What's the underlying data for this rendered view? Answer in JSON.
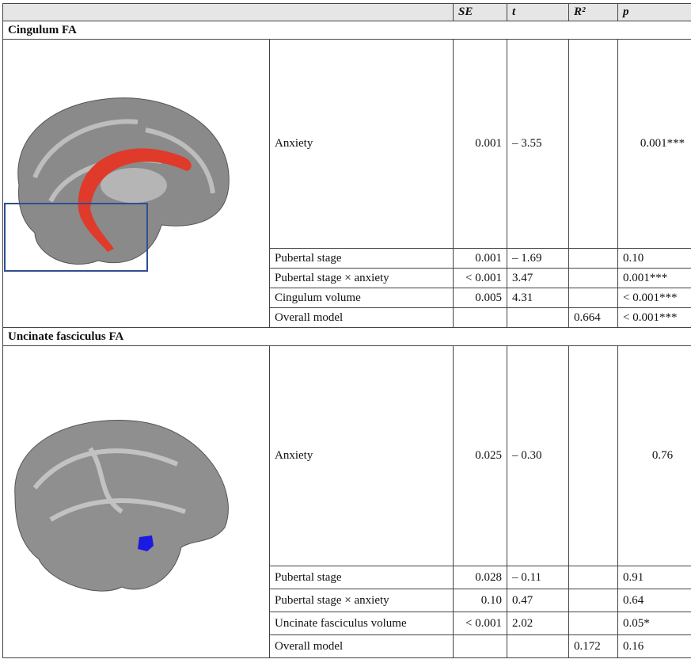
{
  "table": {
    "header": [
      "SE",
      "t",
      "R²",
      "p"
    ],
    "sections": [
      {
        "title": "Cingulum FA",
        "rows": [
          {
            "label": "Anxiety",
            "se": "0.001",
            "t": "– 3.55",
            "r2": null,
            "p": "0.001***"
          },
          {
            "label": "Pubertal stage",
            "se": "0.001",
            "t": "– 1.69",
            "r2": null,
            "p": "0.10"
          },
          {
            "label": "Pubertal stage × anxiety",
            "se": "< 0.001",
            "t": "3.47",
            "r2": null,
            "p": "0.001***"
          },
          {
            "label": "Cingulum volume",
            "se": "0.005",
            "t": "4.31",
            "r2": null,
            "p": "< 0.001***"
          },
          {
            "label": "Overall model",
            "se": null,
            "t": null,
            "r2": "0.664",
            "p": "< 0.001***"
          }
        ]
      },
      {
        "title": "Uncinate fasciculus FA",
        "rows": [
          {
            "label": "Anxiety",
            "se": "0.025",
            "t": "– 0.30",
            "r2": null,
            "p": "0.76"
          },
          {
            "label": "Pubertal stage",
            "se": "0.028",
            "t": "– 0.11",
            "r2": null,
            "p": "0.91"
          },
          {
            "label": "Pubertal stage × anxiety",
            "se": "0.10",
            "t": "0.47",
            "r2": null,
            "p": "0.64"
          },
          {
            "label": "Uncinate fasciculus volume",
            "se": "< 0.001",
            "t": "2.02",
            "r2": null,
            "p": "0.05*"
          },
          {
            "label": "Overall model",
            "se": null,
            "t": null,
            "r2": "0.172",
            "p": "0.16"
          }
        ]
      }
    ]
  }
}
